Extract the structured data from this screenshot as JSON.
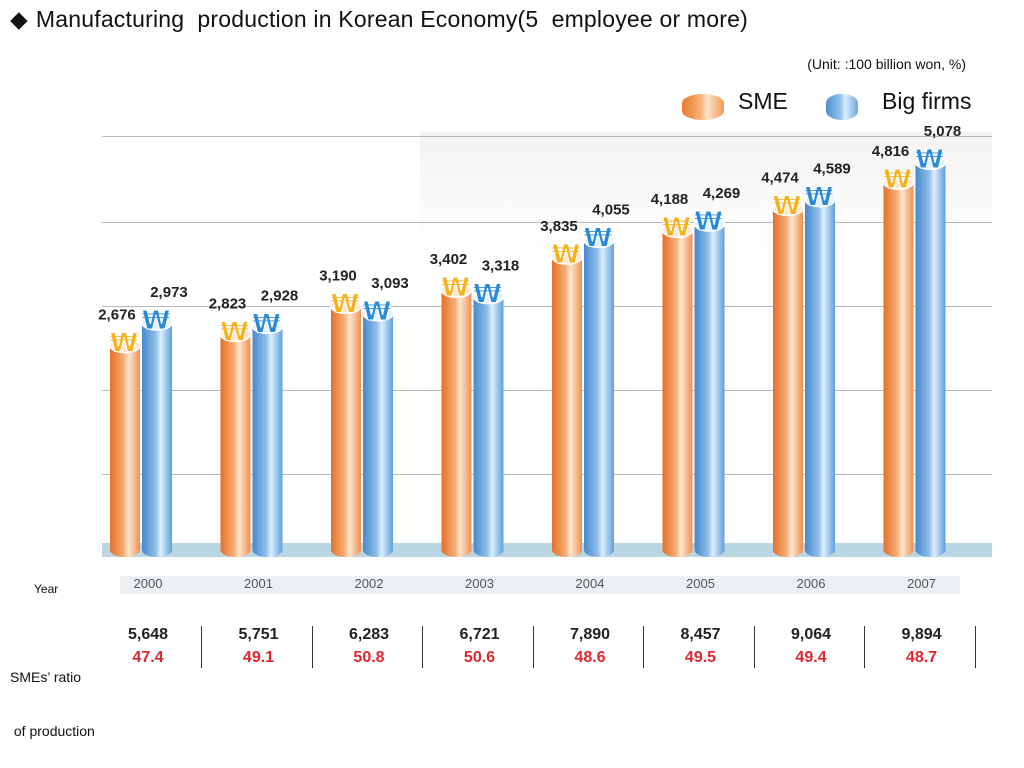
{
  "title": "Manufacturing  production in Korean Economy(5  employee or more)",
  "title_bullet": "◆",
  "unit": "(Unit: :100 billion won, %)",
  "legend": {
    "sme_label": "SME",
    "big_label": "Big firms",
    "sme_icon": "orange-cylinder-icon",
    "big_icon": "blue-cylinder-icon"
  },
  "colors": {
    "sme_dark": "#e87a2e",
    "sme_light": "#fde3c9",
    "big_dark": "#4f8ed0",
    "big_light": "#dbeeff",
    "coin_gold": "#f6b21c",
    "coin_blue": "#2a8ad6",
    "ratio_red": "#e0262f",
    "floor": "#b9d6e2",
    "year_band": "#ecf0f2"
  },
  "chart_data": {
    "type": "bar",
    "categories": [
      "2000",
      "2001",
      "2002",
      "2003",
      "2004",
      "2005",
      "2006",
      "2007"
    ],
    "series": [
      {
        "name": "SME",
        "values": [
          2676,
          2823,
          3190,
          3402,
          3835,
          4188,
          4474,
          4816
        ],
        "labels": [
          "2,676",
          "2,823",
          "3,190",
          "3,402",
          "3,835",
          "4,188",
          "4,474",
          "4,816"
        ]
      },
      {
        "name": "Big firms",
        "values": [
          2973,
          2928,
          3093,
          3318,
          4055,
          4269,
          4589,
          5078
        ],
        "labels": [
          "2,973",
          "2,928",
          "3,093",
          "3,318",
          "4,055",
          "4,269",
          "4,589",
          "5,078"
        ]
      }
    ],
    "title": "Manufacturing  production in Korean Economy(5  employee or more)",
    "xlabel": "",
    "ylabel": "",
    "ylim": [
      0,
      5500
    ],
    "grid": true,
    "legend_position": "top-right",
    "marker_glyph": "₩"
  },
  "table": {
    "year_label": "Year",
    "ratio_label_line1": "SMEs’ ratio",
    "ratio_label_line2": " of production",
    "totals": [
      "5,648",
      "5,751",
      "6,283",
      "6,721",
      "7,890",
      "8,457",
      "9,064",
      "9,894"
    ],
    "ratios": [
      "47.4",
      "49.1",
      "50.8",
      "50.6",
      "48.6",
      "49.5",
      "49.4",
      "48.7"
    ]
  }
}
